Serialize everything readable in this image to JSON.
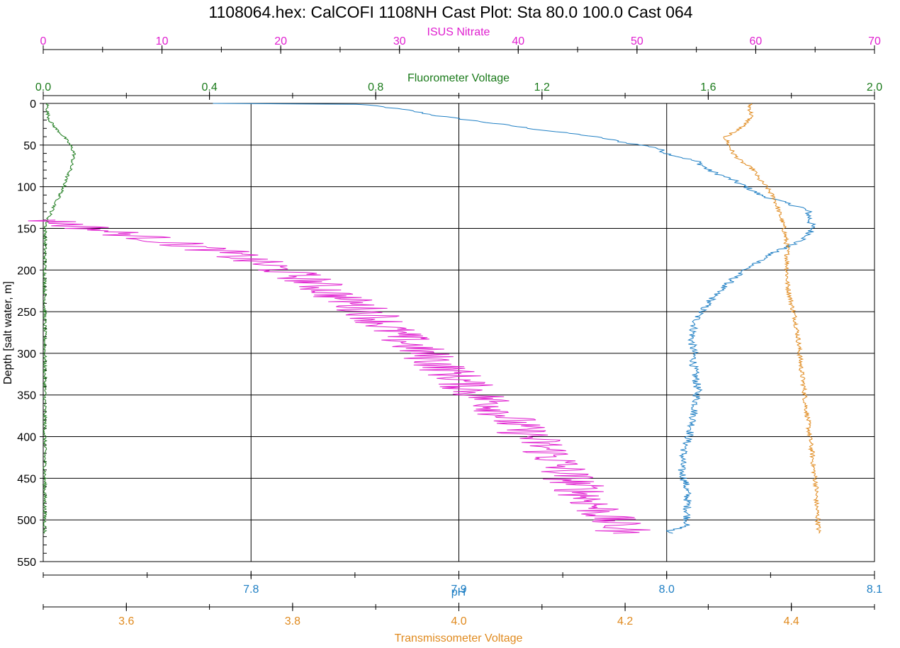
{
  "chart_data": {
    "type": "line",
    "title": "1108064.hex: CalCOFI 1108NH Cast Plot: Sta 80.0 100.0 Cast 064",
    "ylabel": "Depth [salt water, m]",
    "ylim": [
      0,
      550
    ],
    "y_inverted": true,
    "y_ticks": [
      0,
      50,
      100,
      150,
      200,
      250,
      300,
      350,
      400,
      450,
      500,
      550
    ],
    "grid": true,
    "axes": {
      "nitrate": {
        "label": "ISUS Nitrate",
        "position": "top",
        "color": "#e020d0",
        "range": [
          0,
          70
        ],
        "ticks": [
          0,
          10,
          20,
          30,
          40,
          50,
          60,
          70
        ],
        "tick_labels": [
          "0",
          "10",
          "20",
          "30",
          "40",
          "50",
          "60",
          "70"
        ]
      },
      "fluorometer": {
        "label": "Fluorometer Voltage",
        "position": "top",
        "color": "#1a7a1a",
        "range": [
          0,
          2
        ],
        "ticks": [
          0,
          0.4,
          0.8,
          1.2,
          1.6,
          2.0
        ],
        "tick_labels": [
          "0.0",
          "0.4",
          "0.8",
          "1.2",
          "1.6",
          "2.0"
        ]
      },
      "ph": {
        "label": "pH",
        "position": "bottom",
        "color": "#1f7fc4",
        "range": [
          7.7,
          8.1
        ],
        "ticks": [
          7.8,
          7.9,
          8.0,
          8.1
        ],
        "tick_labels": [
          "7.8",
          "7.9",
          "8.0",
          "8.1"
        ]
      },
      "transmissometer": {
        "label": "Transmissometer Voltage",
        "position": "bottom",
        "color": "#e08a1e",
        "range": [
          3.5,
          4.5
        ],
        "ticks": [
          3.6,
          3.8,
          4.0,
          4.2,
          4.4
        ],
        "tick_labels": [
          "3.6",
          "3.8",
          "4.0",
          "4.2",
          "4.4"
        ]
      }
    },
    "series": [
      {
        "axis": "ph",
        "color": "#1f7fc4",
        "jitter": 0.002,
        "points": [
          [
            7.781,
            0
          ],
          [
            7.85,
            1
          ],
          [
            7.86,
            3
          ],
          [
            7.875,
            8
          ],
          [
            7.89,
            15
          ],
          [
            7.92,
            25
          ],
          [
            7.94,
            32
          ],
          [
            7.96,
            38
          ],
          [
            7.97,
            42
          ],
          [
            7.98,
            47
          ],
          [
            7.995,
            53
          ],
          [
            8.0,
            60
          ],
          [
            8.015,
            70
          ],
          [
            8.02,
            80
          ],
          [
            8.03,
            90
          ],
          [
            8.038,
            100
          ],
          [
            8.045,
            110
          ],
          [
            8.058,
            120
          ],
          [
            8.065,
            125
          ],
          [
            8.068,
            130
          ],
          [
            8.069,
            140
          ],
          [
            8.07,
            150
          ],
          [
            8.068,
            160
          ],
          [
            8.06,
            170
          ],
          [
            8.05,
            180
          ],
          [
            8.045,
            190
          ],
          [
            8.037,
            200
          ],
          [
            8.03,
            215
          ],
          [
            8.025,
            225
          ],
          [
            8.02,
            240
          ],
          [
            8.015,
            255
          ],
          [
            8.013,
            270
          ],
          [
            8.012,
            285
          ],
          [
            8.013,
            300
          ],
          [
            8.013,
            315
          ],
          [
            8.014,
            330
          ],
          [
            8.015,
            345
          ],
          [
            8.014,
            360
          ],
          [
            8.013,
            375
          ],
          [
            8.012,
            390
          ],
          [
            8.01,
            405
          ],
          [
            8.008,
            420
          ],
          [
            8.007,
            440
          ],
          [
            8.009,
            455
          ],
          [
            8.01,
            470
          ],
          [
            8.01,
            490
          ],
          [
            8.01,
            505
          ],
          [
            8.005,
            511
          ],
          [
            8.0,
            513
          ],
          [
            8.003,
            516
          ]
        ]
      },
      {
        "axis": "transmissometer",
        "color": "#e08a1e",
        "jitter": 0.003,
        "points": [
          [
            4.35,
            0
          ],
          [
            4.35,
            5
          ],
          [
            4.352,
            15
          ],
          [
            4.345,
            25
          ],
          [
            4.33,
            35
          ],
          [
            4.32,
            40
          ],
          [
            4.325,
            50
          ],
          [
            4.33,
            60
          ],
          [
            4.34,
            70
          ],
          [
            4.355,
            80
          ],
          [
            4.36,
            90
          ],
          [
            4.37,
            100
          ],
          [
            4.38,
            115
          ],
          [
            4.385,
            130
          ],
          [
            4.39,
            145
          ],
          [
            4.393,
            160
          ],
          [
            4.395,
            175
          ],
          [
            4.395,
            190
          ],
          [
            4.395,
            200
          ],
          [
            4.395,
            215
          ],
          [
            4.4,
            240
          ],
          [
            4.405,
            260
          ],
          [
            4.408,
            280
          ],
          [
            4.41,
            300
          ],
          [
            4.412,
            320
          ],
          [
            4.415,
            340
          ],
          [
            4.417,
            360
          ],
          [
            4.42,
            380
          ],
          [
            4.422,
            400
          ],
          [
            4.425,
            420
          ],
          [
            4.427,
            440
          ],
          [
            4.43,
            460
          ],
          [
            4.43,
            480
          ],
          [
            4.432,
            500
          ],
          [
            4.433,
            516
          ]
        ]
      },
      {
        "axis": "fluorometer",
        "color": "#1a7a1a",
        "jitter": 0.004,
        "points": [
          [
            0.01,
            0
          ],
          [
            0.01,
            10
          ],
          [
            0.015,
            20
          ],
          [
            0.03,
            30
          ],
          [
            0.05,
            40
          ],
          [
            0.065,
            50
          ],
          [
            0.075,
            60
          ],
          [
            0.07,
            70
          ],
          [
            0.065,
            80
          ],
          [
            0.055,
            90
          ],
          [
            0.05,
            100
          ],
          [
            0.04,
            110
          ],
          [
            0.03,
            120
          ],
          [
            0.02,
            130
          ],
          [
            0.01,
            140
          ],
          [
            0.005,
            150
          ],
          [
            0.004,
            200
          ],
          [
            0.004,
            300
          ],
          [
            0.004,
            400
          ],
          [
            0.004,
            516
          ]
        ]
      },
      {
        "axis": "nitrate",
        "color": "#e020d0",
        "jitter": 2.4,
        "points": [
          [
            0.2,
            140
          ],
          [
            4,
            150
          ],
          [
            9,
            162
          ],
          [
            15,
            178
          ],
          [
            19,
            195
          ],
          [
            22,
            210
          ],
          [
            24,
            225
          ],
          [
            26,
            240
          ],
          [
            28,
            255
          ],
          [
            29,
            270
          ],
          [
            31,
            290
          ],
          [
            33,
            310
          ],
          [
            35,
            330
          ],
          [
            36,
            345
          ],
          [
            38,
            360
          ],
          [
            39,
            375
          ],
          [
            40,
            390
          ],
          [
            42,
            410
          ],
          [
            43,
            425
          ],
          [
            44,
            445
          ],
          [
            45,
            460
          ],
          [
            46,
            475
          ],
          [
            47,
            490
          ],
          [
            48,
            505
          ],
          [
            49,
            512
          ],
          [
            48,
            516
          ]
        ]
      }
    ]
  }
}
